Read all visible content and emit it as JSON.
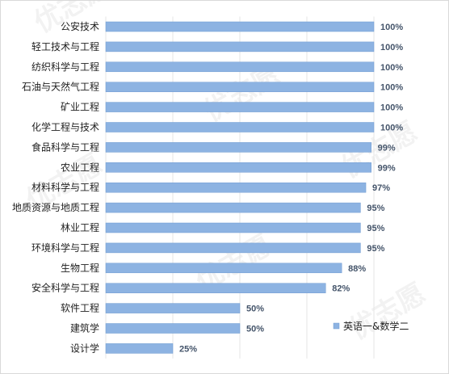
{
  "chart_data": {
    "type": "bar",
    "orientation": "horizontal",
    "categories": [
      "公安技术",
      "轻工技术与工程",
      "纺织科学与工程",
      "石油与天然气工程",
      "矿业工程",
      "化学工程与技术",
      "食品科学与工程",
      "农业工程",
      "材料科学与工程",
      "地质资源与地质工程",
      "林业工程",
      "环境科学与工程",
      "生物工程",
      "安全科学与工程",
      "软件工程",
      "建筑学",
      "设计学"
    ],
    "series": [
      {
        "name": "英语一&数学二",
        "values": [
          100,
          100,
          100,
          100,
          100,
          100,
          99,
          99,
          97,
          95,
          95,
          95,
          88,
          82,
          50,
          50,
          25
        ]
      }
    ],
    "value_labels": [
      "100%",
      "100%",
      "100%",
      "100%",
      "100%",
      "100%",
      "99%",
      "99%",
      "97%",
      "95%",
      "95%",
      "95%",
      "88%",
      "82%",
      "50%",
      "50%",
      "25%"
    ],
    "xlim": [
      0,
      100
    ],
    "grid": true,
    "legend_position": "bottom-right",
    "colors": {
      "bar": "#8db3e2",
      "bar_stroke": "#6f9bd1",
      "label": "#44546a",
      "grid": "#e6e6e6"
    }
  },
  "watermark": {
    "text": "优志愿"
  }
}
